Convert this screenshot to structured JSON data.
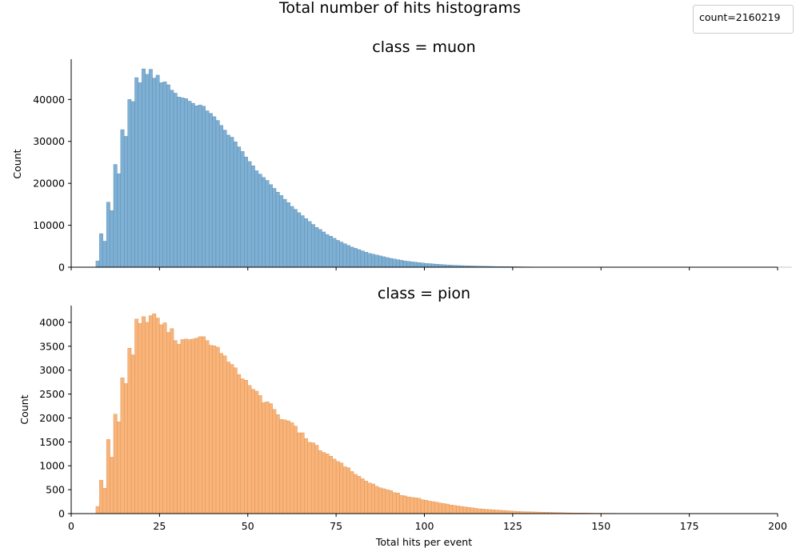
{
  "suptitle": "Total number of hits histograms",
  "legend": {
    "text": "count=2160219"
  },
  "colors": {
    "muon": "#7eb0d5",
    "muon_edge": "#5a86a6",
    "pion": "#f9b47a",
    "pion_edge": "#d98d4e"
  },
  "chart_data": [
    {
      "type": "bar",
      "title": "class = muon",
      "xlabel": "",
      "ylabel": "Count",
      "xlim": [
        0,
        200
      ],
      "ylim": [
        0,
        49600
      ],
      "x_ticks": [
        "0",
        "25",
        "50",
        "75",
        "100",
        "125",
        "150",
        "175",
        "200"
      ],
      "y_ticks": [
        "0",
        "10000",
        "20000",
        "30000",
        "40000"
      ],
      "bin_width": 1,
      "bin_start": 7,
      "values": [
        1500,
        8000,
        6200,
        15500,
        13500,
        24500,
        22300,
        32800,
        31200,
        40000,
        39500,
        45200,
        44000,
        47300,
        46000,
        47200,
        45100,
        45800,
        44000,
        44200,
        43500,
        42200,
        41500,
        40600,
        40400,
        40200,
        39600,
        39100,
        38500,
        38700,
        38400,
        37300,
        36700,
        35900,
        35000,
        33800,
        32700,
        31500,
        31000,
        29900,
        28700,
        27600,
        26300,
        25200,
        24200,
        23000,
        22200,
        21400,
        20700,
        19700,
        18800,
        17900,
        17100,
        16200,
        15400,
        14500,
        13800,
        13000,
        12300,
        11600,
        10900,
        10200,
        9500,
        9000,
        8400,
        7800,
        7400,
        6900,
        6400,
        6000,
        5600,
        5200,
        4800,
        4500,
        4200,
        3900,
        3600,
        3300,
        3100,
        2900,
        2700,
        2500,
        2300,
        2100,
        1950,
        1800,
        1650,
        1500,
        1400,
        1300,
        1200,
        1100,
        1000,
        900,
        850,
        780,
        720,
        660,
        600,
        550,
        500,
        460,
        420,
        390,
        360,
        330,
        300,
        280,
        260,
        240,
        220,
        200,
        180,
        165,
        150,
        140,
        130,
        120,
        110,
        100,
        90,
        80,
        70,
        60,
        55,
        50,
        45,
        40,
        35,
        30,
        28,
        26,
        24,
        22,
        20,
        18,
        16,
        14,
        12,
        10,
        9,
        8,
        7,
        6,
        5,
        5,
        4,
        4,
        3,
        3,
        2,
        2,
        2,
        1,
        1,
        1,
        1,
        1,
        1,
        1,
        1,
        1,
        1,
        1,
        1,
        1,
        1,
        1,
        1,
        1,
        1,
        1,
        1,
        1,
        1,
        1,
        1,
        1,
        1,
        1,
        1,
        1,
        1,
        1,
        1,
        1,
        1,
        1,
        1,
        1,
        1,
        1,
        1,
        1,
        1,
        1,
        1
      ]
    },
    {
      "type": "bar",
      "title": "class = pion",
      "xlabel": "Total hits per event",
      "ylabel": "Count",
      "xlim": [
        0,
        200
      ],
      "ylim": [
        0,
        4350
      ],
      "x_ticks": [
        "0",
        "25",
        "50",
        "75",
        "100",
        "125",
        "150",
        "175",
        "200"
      ],
      "y_ticks": [
        "0",
        "500",
        "1000",
        "1500",
        "2000",
        "2500",
        "3000",
        "3500",
        "4000"
      ],
      "bin_width": 1,
      "bin_start": 7,
      "values": [
        150,
        700,
        530,
        1550,
        1180,
        2080,
        1920,
        2840,
        2720,
        3460,
        3320,
        4070,
        3980,
        4120,
        4000,
        4140,
        4180,
        4090,
        3950,
        3990,
        3790,
        3870,
        3620,
        3540,
        3640,
        3650,
        3640,
        3650,
        3670,
        3700,
        3700,
        3620,
        3520,
        3510,
        3480,
        3350,
        3300,
        3170,
        3120,
        3050,
        2910,
        2820,
        2790,
        2680,
        2600,
        2560,
        2470,
        2320,
        2340,
        2300,
        2180,
        2070,
        1970,
        1960,
        1940,
        1900,
        1830,
        1690,
        1690,
        1570,
        1490,
        1480,
        1430,
        1320,
        1280,
        1250,
        1200,
        1140,
        1090,
        1060,
        980,
        960,
        880,
        820,
        780,
        730,
        680,
        640,
        620,
        570,
        540,
        520,
        500,
        480,
        440,
        430,
        380,
        370,
        350,
        340,
        330,
        320,
        290,
        280,
        260,
        250,
        240,
        220,
        210,
        200,
        180,
        170,
        160,
        150,
        140,
        130,
        120,
        110,
        100,
        95,
        90,
        85,
        80,
        75,
        70,
        65,
        60,
        55,
        50,
        45,
        42,
        40,
        38,
        36,
        34,
        32,
        30,
        28,
        26,
        24,
        22,
        20,
        18,
        16,
        15,
        14,
        13,
        12,
        11,
        10,
        9,
        8,
        8,
        7,
        7,
        6,
        6,
        5,
        5,
        5,
        4,
        4,
        4,
        3,
        3,
        3,
        3,
        2,
        2,
        2,
        2,
        2,
        2,
        1,
        1,
        1,
        1,
        1,
        1,
        1,
        1,
        1,
        1,
        1,
        1,
        1,
        1,
        1,
        1,
        1,
        1,
        1,
        1,
        1,
        1,
        1,
        1,
        1
      ]
    }
  ]
}
